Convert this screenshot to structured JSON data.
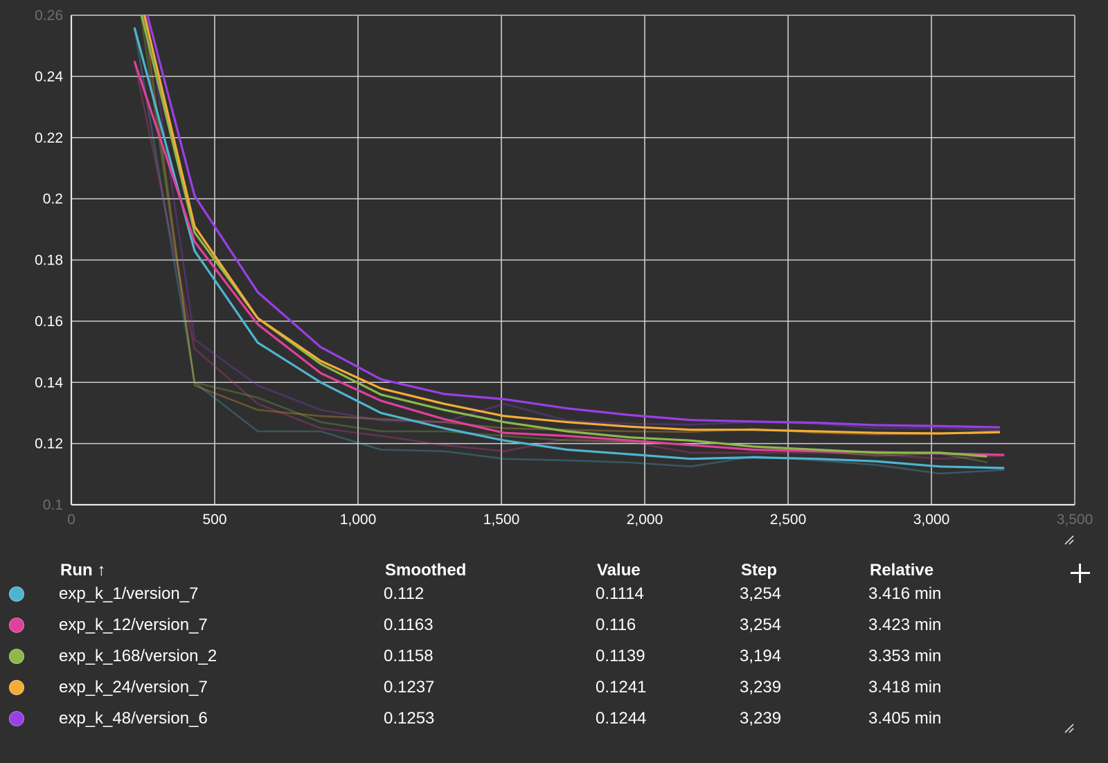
{
  "chart_data": {
    "type": "line",
    "xlim": [
      0,
      3500
    ],
    "ylim": [
      0.1,
      0.26
    ],
    "x_ticks": [
      0,
      500,
      1000,
      1500,
      2000,
      2500,
      3000,
      3500
    ],
    "x_tick_labels": [
      "0",
      "500",
      "1,000",
      "1,500",
      "2,000",
      "2,500",
      "3,000",
      "3,500"
    ],
    "y_ticks": [
      0.1,
      0.12,
      0.14,
      0.16,
      0.18,
      0.2,
      0.22,
      0.24,
      0.26
    ],
    "y_tick_labels": [
      "0.1",
      "0.12",
      "0.14",
      "0.16",
      "0.18",
      "0.2",
      "0.22",
      "0.24",
      "0.26"
    ],
    "grid": true,
    "series": [
      {
        "name": "exp_k_1/version_7",
        "color": "#4fb4d0",
        "x": [
          220,
          430,
          650,
          870,
          1080,
          1300,
          1510,
          1730,
          1950,
          2160,
          2380,
          2600,
          2810,
          3030,
          3254
        ],
        "smoothed": [
          0.256,
          0.183,
          0.153,
          0.14,
          0.13,
          0.125,
          0.121,
          0.118,
          0.1165,
          0.115,
          0.1155,
          0.115,
          0.1142,
          0.1125,
          0.112
        ],
        "raw": [
          0.256,
          0.14,
          0.124,
          0.124,
          0.118,
          0.1175,
          0.115,
          0.1145,
          0.1138,
          0.1125,
          0.1158,
          0.1145,
          0.113,
          0.1102,
          0.1114
        ]
      },
      {
        "name": "exp_k_12/version_7",
        "color": "#e0409a",
        "x": [
          220,
          430,
          650,
          870,
          1080,
          1300,
          1510,
          1730,
          1950,
          2160,
          2380,
          2600,
          2810,
          3030,
          3254
        ],
        "smoothed": [
          0.245,
          0.186,
          0.159,
          0.143,
          0.134,
          0.128,
          0.1235,
          0.1225,
          0.121,
          0.1195,
          0.118,
          0.1175,
          0.1172,
          0.1168,
          0.1163
        ],
        "raw": [
          0.245,
          0.151,
          0.133,
          0.125,
          0.1225,
          0.1195,
          0.1175,
          0.1215,
          0.1205,
          0.117,
          0.117,
          0.117,
          0.1165,
          0.115,
          0.116
        ]
      },
      {
        "name": "exp_k_168/version_2",
        "color": "#8db84a",
        "x": [
          240,
          430,
          650,
          870,
          1080,
          1300,
          1510,
          1730,
          1950,
          2160,
          2380,
          2600,
          2810,
          3030,
          3194
        ],
        "smoothed": [
          0.262,
          0.189,
          0.161,
          0.146,
          0.136,
          0.131,
          0.127,
          0.124,
          0.122,
          0.121,
          0.119,
          0.118,
          0.117,
          0.117,
          0.1158
        ],
        "raw": [
          0.262,
          0.14,
          0.135,
          0.127,
          0.124,
          0.124,
          0.1225,
          0.121,
          0.1205,
          0.1195,
          0.118,
          0.1175,
          0.116,
          0.1168,
          0.1139
        ]
      },
      {
        "name": "exp_k_24/version_7",
        "color": "#f5ac36",
        "x": [
          250,
          430,
          650,
          870,
          1080,
          1300,
          1510,
          1730,
          1950,
          2160,
          2380,
          2600,
          2810,
          3030,
          3239
        ],
        "smoothed": [
          0.262,
          0.191,
          0.161,
          0.147,
          0.138,
          0.133,
          0.129,
          0.127,
          0.1255,
          0.1245,
          0.1245,
          0.124,
          0.1235,
          0.1233,
          0.1237
        ],
        "raw": [
          0.262,
          0.139,
          0.131,
          0.129,
          0.128,
          0.127,
          0.125,
          0.1245,
          0.124,
          0.1238,
          0.1248,
          0.1235,
          0.123,
          0.1232,
          0.1241
        ]
      },
      {
        "name": "exp_k_48/version_6",
        "color": "#9a3fe6",
        "x": [
          260,
          430,
          650,
          870,
          1080,
          1300,
          1510,
          1730,
          1950,
          2160,
          2380,
          2600,
          2810,
          3030,
          3239
        ],
        "smoothed": [
          0.262,
          0.201,
          0.1695,
          0.1515,
          0.141,
          0.1362,
          0.1345,
          0.1315,
          0.1293,
          0.1277,
          0.1272,
          0.1268,
          0.126,
          0.1257,
          0.1253
        ],
        "raw": [
          0.262,
          0.154,
          0.139,
          0.131,
          0.1275,
          0.127,
          0.133,
          0.1275,
          0.1265,
          0.1262,
          0.127,
          0.1265,
          0.125,
          0.125,
          0.1244
        ]
      }
    ]
  },
  "table": {
    "headers": {
      "run": "Run ↑",
      "smoothed": "Smoothed",
      "value": "Value",
      "step": "Step",
      "relative": "Relative"
    },
    "rows": [
      {
        "run": "exp_k_1/version_7",
        "smoothed": "0.112",
        "value": "0.1114",
        "step": "3,254",
        "relative": "3.416 min",
        "color": "#4fb4d0"
      },
      {
        "run": "exp_k_12/version_7",
        "smoothed": "0.1163",
        "value": "0.116",
        "step": "3,254",
        "relative": "3.423 min",
        "color": "#e0409a"
      },
      {
        "run": "exp_k_168/version_2",
        "smoothed": "0.1158",
        "value": "0.1139",
        "step": "3,194",
        "relative": "3.353 min",
        "color": "#8db84a"
      },
      {
        "run": "exp_k_24/version_7",
        "smoothed": "0.1237",
        "value": "0.1241",
        "step": "3,239",
        "relative": "3.418 min",
        "color": "#f5ac36"
      },
      {
        "run": "exp_k_48/version_6",
        "smoothed": "0.1253",
        "value": "0.1244",
        "step": "3,239",
        "relative": "3.405 min",
        "color": "#9a3fe6"
      }
    ]
  },
  "icons": {
    "add_column": "plus-icon",
    "resize": "resize-handle-icon"
  }
}
